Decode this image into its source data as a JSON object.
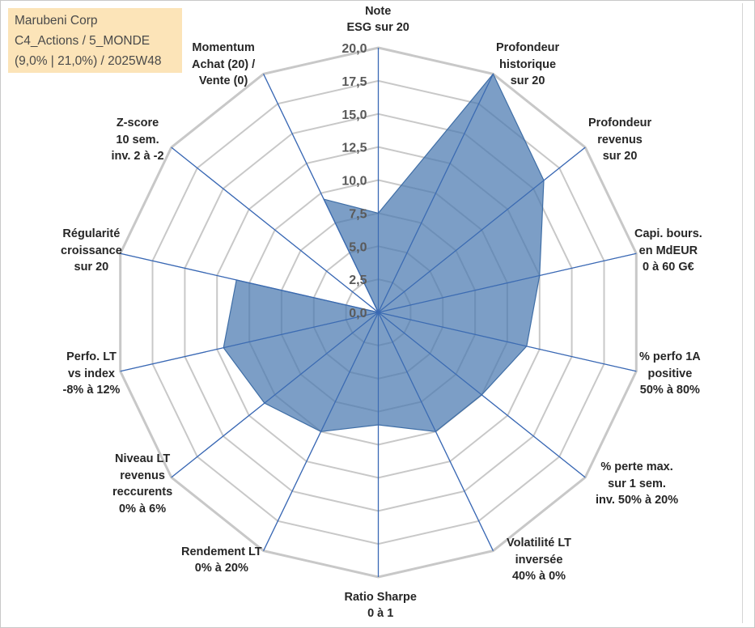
{
  "title_box": {
    "line1": "Marubeni Corp",
    "line2": "C4_Actions / 5_MONDE",
    "line3": "(9,0% | 21,0%) / 2025W48",
    "background": "#fce4b8"
  },
  "chart_data": {
    "type": "radar",
    "title": "Marubeni Corp",
    "rmin": 0,
    "rmax": 20,
    "tick_step": 2.5,
    "tick_labels": [
      "0,0",
      "2,5",
      "5,0",
      "7,5",
      "10,0",
      "12,5",
      "15,0",
      "17,5",
      "20,0"
    ],
    "axes": [
      {
        "lines": [
          "Note",
          "ESG sur 20"
        ],
        "value": 7.5
      },
      {
        "lines": [
          "Profondeur",
          "historique",
          "sur 20"
        ],
        "value": 20.0
      },
      {
        "lines": [
          "Profondeur",
          "revenus",
          "sur 20"
        ],
        "value": 16.0
      },
      {
        "lines": [
          "Capi. bours.",
          "en MdEUR",
          "0 à 60 G€"
        ],
        "value": 12.5
      },
      {
        "lines": [
          "% perfo 1A",
          "positive",
          "50% à 80%"
        ],
        "value": 11.5
      },
      {
        "lines": [
          "% perte max.",
          "sur 1 sem.",
          "inv. 50% à 20%"
        ],
        "value": 10.0
      },
      {
        "lines": [
          "Volatilité LT",
          "inversée",
          "40% à 0%"
        ],
        "value": 10.0
      },
      {
        "lines": [
          "Ratio Sharpe",
          "0 à 1"
        ],
        "value": 8.5
      },
      {
        "lines": [
          "Rendement LT",
          "0% à 20%"
        ],
        "value": 10.0
      },
      {
        "lines": [
          "Niveau LT",
          "revenus",
          "reccurents",
          "0% à 6%"
        ],
        "value": 11.0
      },
      {
        "lines": [
          "Perfo. LT",
          "vs index",
          "-8% à 12%"
        ],
        "value": 12.0
      },
      {
        "lines": [
          "Régularité",
          "croissance",
          "sur 20"
        ],
        "value": 11.0
      },
      {
        "lines": [
          "Z-score",
          "10 sem.",
          "inv. 2 à -2"
        ],
        "value": 0.0
      },
      {
        "lines": [
          "Momentum",
          "Achat (20) /",
          "Vente (0)"
        ],
        "value": 9.5
      }
    ],
    "series": [
      {
        "name": "Marubeni Corp",
        "color": "#4a78b0",
        "fill_opacity": 0.72
      }
    ],
    "grid_color": "#c8c8c8",
    "axis_color": "#3a68b4"
  }
}
